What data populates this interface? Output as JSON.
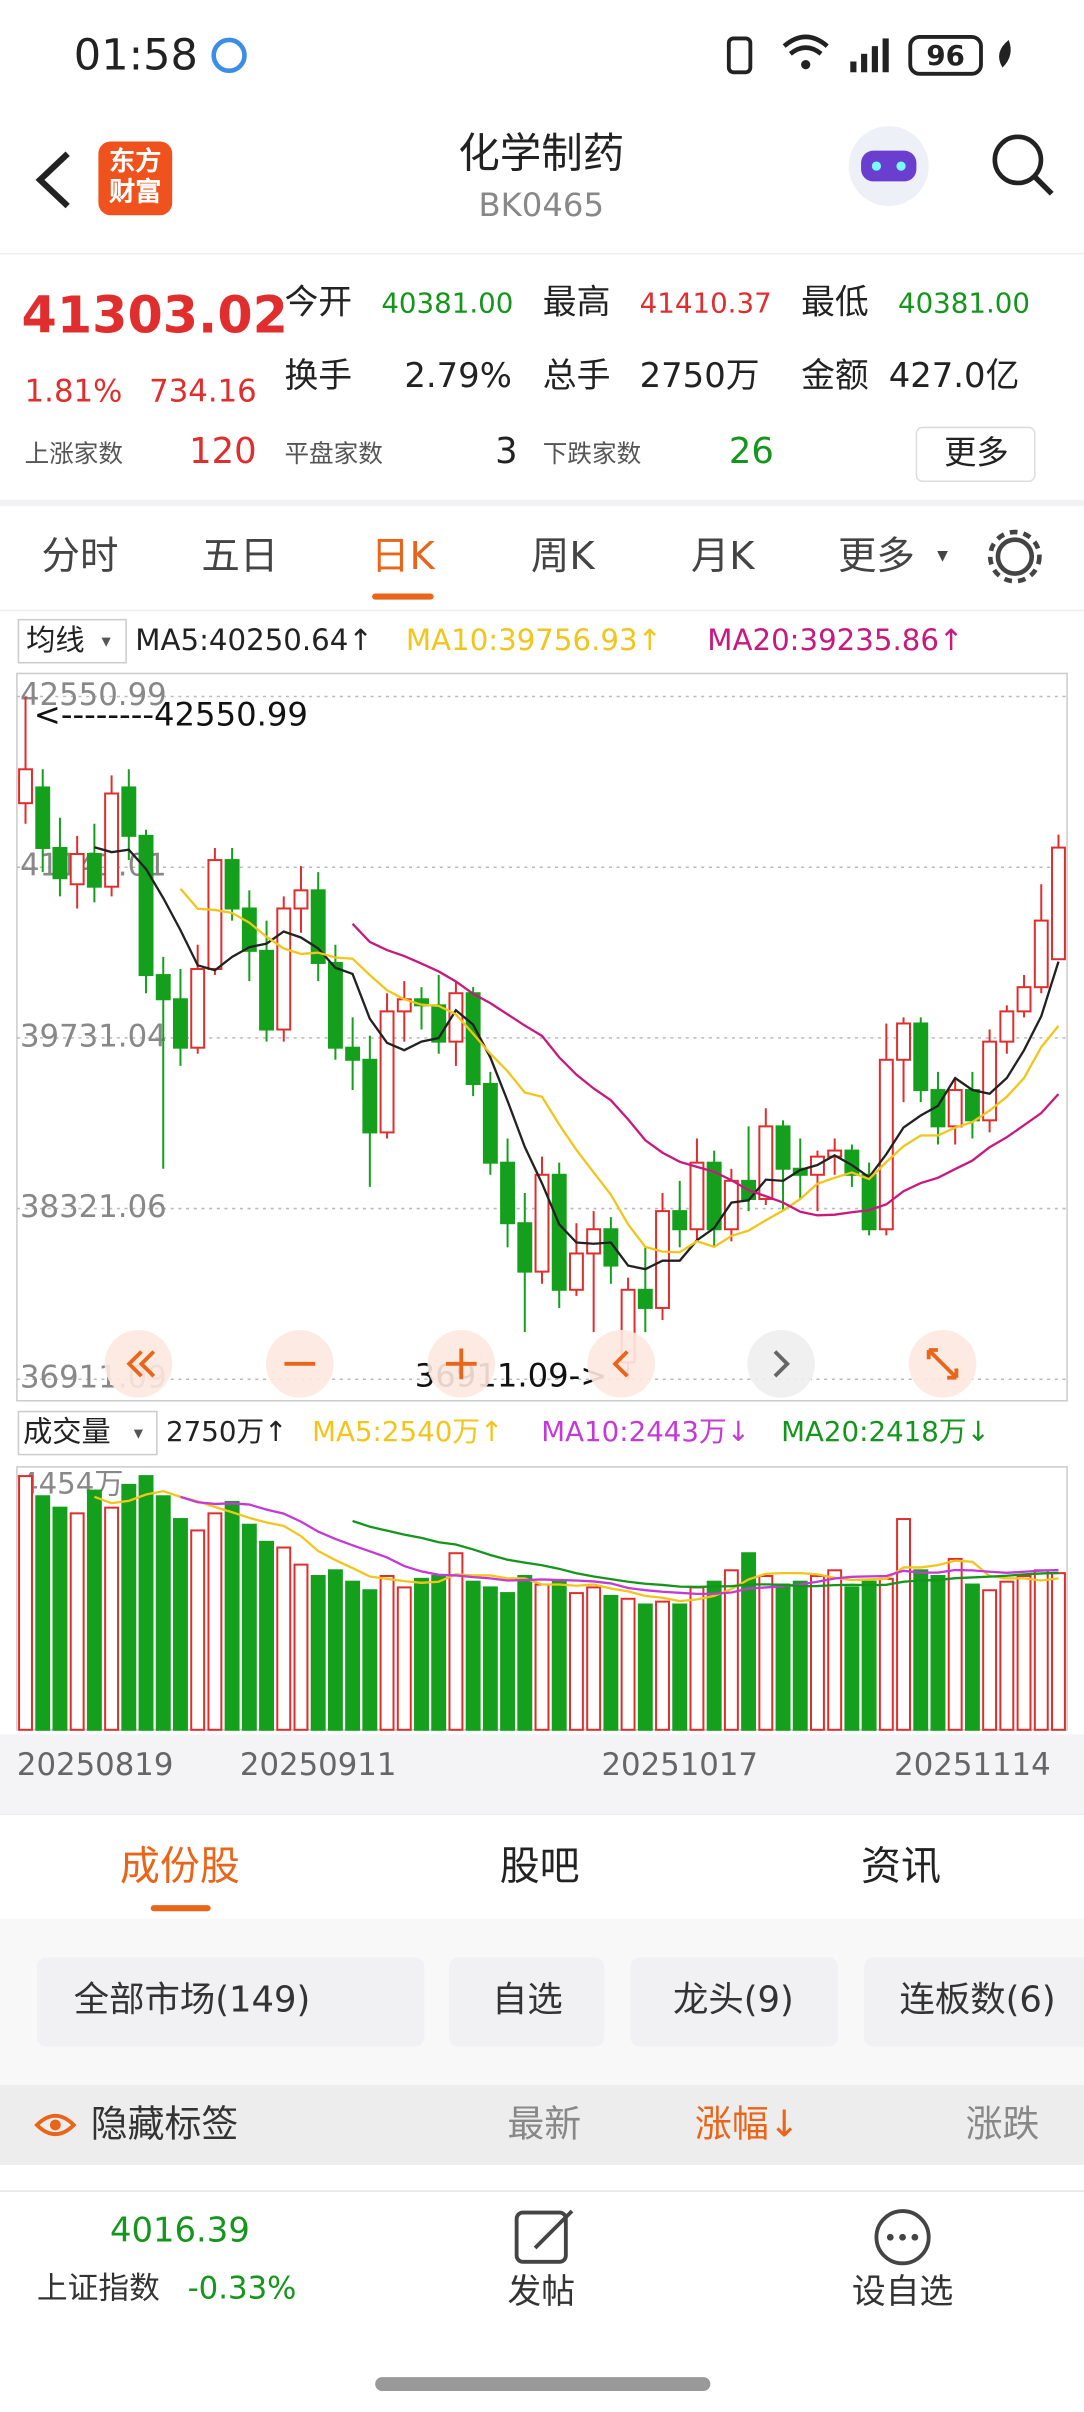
{
  "status_bar": {
    "time": "01:58",
    "battery": "96"
  },
  "header": {
    "logo": "东方财富",
    "title": "化学制药",
    "code": "BK0465"
  },
  "quote": {
    "price": "41303.02",
    "change_pct": "1.81%",
    "change": "734.16",
    "fields": [
      {
        "label": "今开",
        "value": "40381.00"
      },
      {
        "label": "最高",
        "value": "41410.37"
      },
      {
        "label": "最低",
        "value": "40381.00"
      },
      {
        "label": "换手",
        "value": "2.79%"
      },
      {
        "label": "总手",
        "value": "2750万"
      },
      {
        "label": "金额",
        "value": "427.0亿"
      }
    ],
    "breadth": [
      {
        "label": "上涨家数",
        "value": "120"
      },
      {
        "label": "平盘家数",
        "value": "3"
      },
      {
        "label": "下跌家数",
        "value": "26"
      }
    ],
    "more": "更多"
  },
  "tabs": [
    "分时",
    "五日",
    "日K",
    "周K",
    "月K",
    "更多"
  ],
  "ma_legend": {
    "selector": "均线",
    "items": [
      {
        "text": "MA5:40250.64↑",
        "color": "#222222"
      },
      {
        "text": "MA10:39756.93↑",
        "color": "#f2c51b"
      },
      {
        "text": "MA20:39235.86↑",
        "color": "#c8197f"
      }
    ]
  },
  "volume_legend": {
    "selector": "成交量",
    "items": [
      {
        "text": "2750万↑",
        "color": "#222222"
      },
      {
        "text": "MA5:2540万↑",
        "color": "#f2c51b"
      },
      {
        "text": "MA10:2443万↓",
        "color": "#c43ad6"
      },
      {
        "text": "MA20:2418万↓",
        "color": "#14961c"
      }
    ]
  },
  "chart_data": [
    {
      "type": "candlestick",
      "ylim": [
        36911.09,
        42550.99
      ],
      "yticks": [
        42550.99,
        41141.01,
        39731.04,
        38321.06,
        36911.09
      ],
      "grid": true,
      "up_color": "#e02e2e",
      "down_color": "#14a01c",
      "annotations": [
        {
          "text": "<--------42550.99"
        },
        {
          "text": "36911.09->"
        }
      ],
      "open": [
        41670,
        41800,
        41300,
        41000,
        41250,
        40980,
        41800,
        41400,
        40250,
        40050,
        39650,
        40300,
        41200,
        40800,
        40450,
        39800,
        40800,
        40950,
        40350,
        39650,
        39550,
        38950,
        39950,
        40050,
        40000,
        39700,
        40100,
        39350,
        38700,
        38200,
        37800,
        38600,
        37650,
        37950,
        38150,
        37050,
        37650,
        37500,
        38300,
        38150,
        38700,
        38150,
        38550,
        38400,
        39000,
        38650,
        38600,
        38750,
        38800,
        38600,
        38150,
        39550,
        39850,
        39300,
        39000,
        39300,
        39050,
        39700,
        39950,
        40150,
        40381
      ],
      "high": [
        42550.99,
        41950,
        41550,
        41400,
        41500,
        41900,
        41950,
        41450,
        40400,
        40300,
        40500,
        41300,
        41300,
        40950,
        40700,
        40900,
        41150,
        41100,
        40500,
        39900,
        39750,
        40100,
        40200,
        40150,
        40250,
        40200,
        40150,
        39450,
        38900,
        38450,
        38750,
        38700,
        38200,
        38300,
        38250,
        37750,
        38000,
        38450,
        38550,
        38900,
        38800,
        38650,
        39000,
        39150,
        39050,
        38900,
        38800,
        38900,
        38850,
        38700,
        39850,
        39900,
        39900,
        39450,
        39400,
        39450,
        39800,
        40000,
        40250,
        41000,
        41410.37
      ],
      "low": [
        41500,
        41100,
        40900,
        40800,
        40850,
        40900,
        41200,
        40100,
        38650,
        39500,
        39600,
        40250,
        40700,
        40200,
        39700,
        39700,
        40600,
        40200,
        39550,
        39300,
        38500,
        38900,
        39700,
        39800,
        39600,
        39500,
        39250,
        38600,
        38000,
        37300,
        37700,
        37500,
        37600,
        37300,
        37700,
        36911.09,
        37300,
        37400,
        38000,
        38050,
        38000,
        38050,
        38300,
        38350,
        38300,
        38400,
        38300,
        38600,
        38500,
        38100,
        38100,
        39200,
        39200,
        38850,
        38850,
        38900,
        38950,
        39600,
        39900,
        40100,
        40381
      ],
      "close": [
        41950,
        41300,
        41050,
        41250,
        40980,
        41750,
        41400,
        40250,
        40050,
        39650,
        40300,
        41200,
        40800,
        40450,
        39800,
        40800,
        40950,
        40350,
        39650,
        39550,
        38950,
        39950,
        40050,
        40000,
        39700,
        40100,
        39350,
        38700,
        38200,
        37800,
        38600,
        37650,
        37950,
        38150,
        37850,
        37650,
        37500,
        38300,
        38150,
        38700,
        38150,
        38550,
        38400,
        39000,
        38650,
        38600,
        38750,
        38800,
        38600,
        38150,
        39550,
        39850,
        39300,
        39000,
        39300,
        39050,
        39700,
        39950,
        40150,
        40700,
        41303.02
      ]
    },
    {
      "type": "bar",
      "ylim": [
        0,
        4454
      ],
      "yticks": [
        {
          "value": 4454,
          "label": "4454万"
        }
      ],
      "categories": [
        "20250819",
        null,
        null,
        null,
        null,
        null,
        null,
        null,
        null,
        null,
        null,
        null,
        null,
        null,
        null,
        null,
        null,
        "20250911",
        null,
        null,
        null,
        null,
        null,
        null,
        null,
        null,
        null,
        null,
        null,
        null,
        null,
        null,
        null,
        null,
        null,
        null,
        null,
        null,
        "20251017",
        null,
        null,
        null,
        null,
        null,
        null,
        null,
        null,
        null,
        null,
        null,
        null,
        null,
        null,
        null,
        null,
        "20251114",
        null,
        null,
        null,
        null,
        null
      ],
      "values": [
        4454,
        4100,
        3900,
        3800,
        4200,
        3900,
        4300,
        4454,
        4100,
        3700,
        3500,
        3800,
        4000,
        3600,
        3300,
        3200,
        2900,
        2700,
        2800,
        2600,
        2450,
        2700,
        2500,
        2650,
        2700,
        3100,
        2600,
        2500,
        2400,
        2700,
        2550,
        2600,
        2400,
        2500,
        2350,
        2300,
        2200,
        2250,
        2200,
        2500,
        2600,
        2800,
        3100,
        2700,
        2550,
        2600,
        2700,
        2800,
        2500,
        2600,
        2650,
        3700,
        2800,
        2700,
        3000,
        2550,
        2450,
        2600,
        2700,
        2800,
        2750
      ]
    }
  ],
  "list_tabs": [
    "成份股",
    "股吧",
    "资讯"
  ],
  "filters": [
    "全部市场(149)",
    "自选",
    "龙头(9)",
    "连板数(6)"
  ],
  "table_header": {
    "toggle": "隐藏标签",
    "columns": [
      "最新",
      "涨幅↓",
      "涨跌"
    ]
  },
  "bottom_bar": {
    "index_value": "4016.39",
    "index_name": "上证指数",
    "index_change": "-0.33%",
    "post": "发帖",
    "watch": "设自选"
  }
}
